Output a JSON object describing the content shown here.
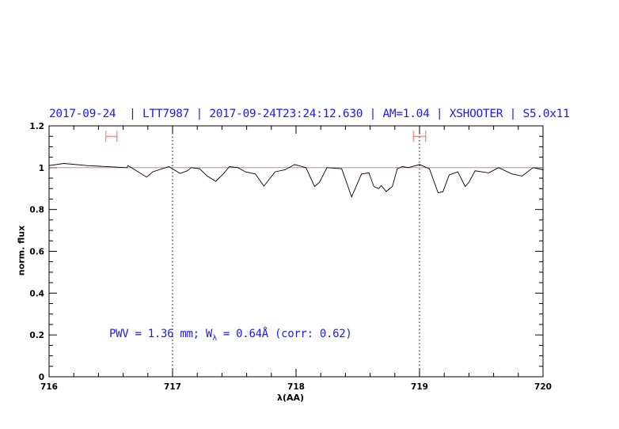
{
  "chart_data": {
    "type": "line",
    "title": "2017-09-24  | LTT7987 | 2017-09-24T23:24:12.630 | AM=1.04 | XSHOOTER | S5.0x11",
    "xlabel": "λ(AA)",
    "ylabel": "norm. flux",
    "xlim": [
      716,
      720
    ],
    "ylim": [
      0,
      1.2
    ],
    "xticks": [
      "716",
      "717",
      "718",
      "719",
      "720"
    ],
    "yticks": [
      "0",
      "0.2",
      "0.4",
      "0.6",
      "0.8",
      "1",
      "1.2"
    ],
    "grid": false,
    "annotation": "PWV = 1.36 mm; W",
    "annotation_sub": "λ",
    "annotation_rest": " = 0.64Å (corr: 0.62)",
    "reference_line_y": 1.0,
    "vertical_dotted_lines_x": [
      717,
      719
    ],
    "error_bars": [
      {
        "x": [
          716.46,
          716.55
        ],
        "y": 1.15
      },
      {
        "x": [
          718.95,
          719.05
        ],
        "y": 1.15
      }
    ],
    "colors": {
      "title": "#1a1aff",
      "spectrum": "#000000",
      "reference_line": "#d07070",
      "error_bars": "#ff6060"
    },
    "series": [
      {
        "x": [
          716.0,
          716.12,
          716.31,
          716.63,
          716.64,
          716.79,
          716.84,
          716.97,
          717.06,
          717.12,
          717.15,
          717.22,
          717.28,
          717.35,
          717.41,
          717.46,
          717.53,
          717.59,
          717.67,
          717.74,
          717.83,
          717.91,
          717.99,
          718.02,
          718.08,
          718.15,
          718.19,
          718.25,
          718.37,
          718.45,
          718.53,
          718.59,
          718.63,
          718.67,
          718.69,
          718.73,
          718.78,
          718.82,
          718.86,
          718.91,
          719.0,
          719.08,
          719.15,
          719.19,
          719.24,
          719.31,
          719.37,
          719.4,
          719.45,
          719.56,
          719.64,
          719.75,
          719.83,
          719.92,
          720.0
        ],
        "y": [
          1.01,
          1.02,
          1.01,
          1.0,
          1.01,
          0.955,
          0.98,
          1.005,
          0.973,
          0.985,
          1.0,
          0.995,
          0.96,
          0.935,
          0.97,
          1.005,
          1.0,
          0.98,
          0.97,
          0.912,
          0.98,
          0.99,
          1.015,
          1.01,
          1.0,
          0.91,
          0.93,
          1.0,
          0.995,
          0.86,
          0.97,
          0.975,
          0.91,
          0.9,
          0.915,
          0.886,
          0.91,
          0.995,
          1.005,
          1.0,
          1.015,
          0.995,
          0.88,
          0.885,
          0.965,
          0.98,
          0.91,
          0.93,
          0.985,
          0.975,
          1.0,
          0.97,
          0.96,
          1.0,
          0.99
        ]
      }
    ]
  }
}
